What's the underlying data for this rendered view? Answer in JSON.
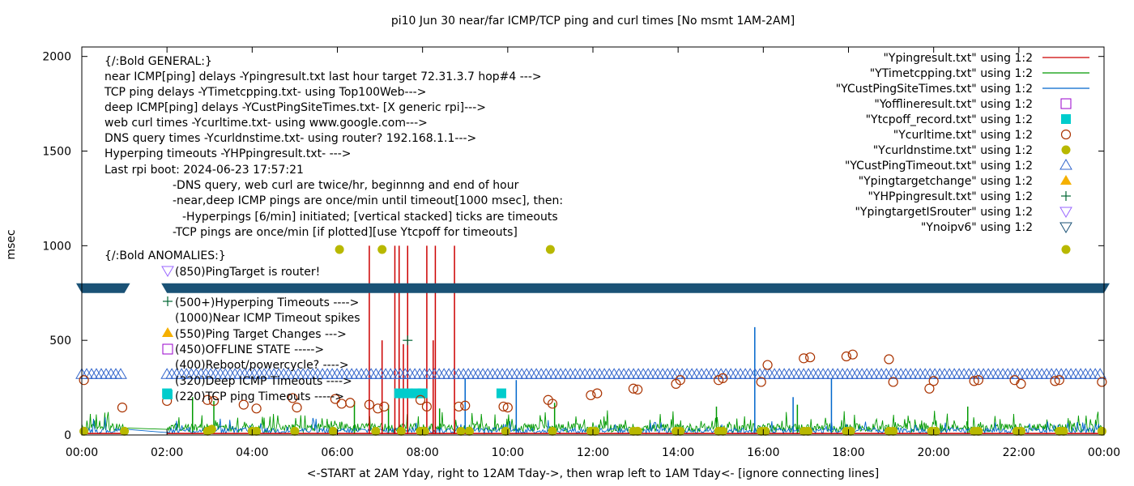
{
  "chart_data": {
    "type": "line",
    "title": "pi10 Jun 30  near/far ICMP/TCP ping and curl times [No msmt 1AM-2AM]",
    "xlabel": "<-START at 2AM Yday, right to 12AM Tday->, then wrap left to 1AM Tday<- [ignore connecting lines]",
    "ylabel": "msec",
    "xlim": [
      0,
      24
    ],
    "ylim": [
      0,
      2050
    ],
    "x_ticks": [
      "00:00",
      "02:00",
      "04:00",
      "06:00",
      "08:00",
      "10:00",
      "12:00",
      "14:00",
      "16:00",
      "18:00",
      "20:00",
      "22:00",
      "00:00"
    ],
    "y_ticks": [
      "0",
      "500",
      "1000",
      "1500",
      "2000"
    ],
    "grid": false,
    "legend_position": "top-right",
    "notes": [
      "{/:Bold GENERAL:}",
      "near ICMP[ping] delays -Ypingresult.txt last hour target 72.31.3.7 hop#4 --->",
      "TCP ping delays -YTimetcpping.txt- using Top100Web--->",
      "deep ICMP[ping] delays -YCustPingSiteTimes.txt- [X generic rpi]--->",
      "web curl times -Ycurltime.txt- using www.google.com--->",
      "DNS query times -Ycurldnstime.txt- using router? 192.168.1.1--->",
      "Hyperping timeouts -YHPpingresult.txt- --->",
      "Last rpi boot: 2024-06-23 17:57:21",
      "-DNS query, web curl are twice/hr, beginnng and end of hour",
      "-near,deep ICMP pings are once/min until timeout[1000 msec], then:",
      "-Hyperpings [6/min] initiated; [vertical stacked] ticks are timeouts",
      "-TCP pings are once/min [if plotted][use Ytcpoff for timeouts]",
      "{/:Bold ANOMALIES:}",
      "(850)PingTarget is router!",
      "(500+)Hyperping Timeouts ---->",
      "(1000)Near ICMP Timeout spikes",
      "(550)Ping Target Changes --->",
      "(450)OFFLINE STATE ----->",
      "(400)Reboot/powercycle? ---->",
      "(320)Deep ICMP Timeouts ---->",
      "(220)TCP ping Timeouts ----->"
    ],
    "series": [
      {
        "name": "\"Ypingresult.txt\" using 1:2",
        "color": "#cc0000",
        "marker": "line",
        "spikes": [
          [
            6.75,
            1000
          ],
          [
            7.35,
            1000
          ],
          [
            7.45,
            1000
          ],
          [
            7.65,
            1000
          ],
          [
            8.1,
            1000
          ],
          [
            8.3,
            1000
          ],
          [
            8.75,
            1000
          ],
          [
            7.05,
            500
          ],
          [
            7.55,
            480
          ],
          [
            8.25,
            500
          ]
        ]
      },
      {
        "name": "\"YTimetcpping.txt\" using 1:2",
        "color": "#009900",
        "marker": "line",
        "spikes": [
          [
            2.6,
            200
          ],
          [
            3.1,
            180
          ],
          [
            6.4,
            180
          ],
          [
            7.2,
            160
          ],
          [
            8.4,
            140
          ],
          [
            11.1,
            170
          ],
          [
            14.9,
            150
          ],
          [
            16.8,
            160
          ],
          [
            20.8,
            150
          ]
        ]
      },
      {
        "name": "\"YCustPingSiteTimes.txt\" using 1:2",
        "color": "#0066cc",
        "marker": "line",
        "spikes": [
          [
            15.8,
            570
          ],
          [
            9.0,
            300
          ],
          [
            10.2,
            290
          ],
          [
            17.6,
            300
          ],
          [
            16.7,
            200
          ]
        ]
      },
      {
        "name": "\"Yofflineresult.txt\" using 1:2",
        "color": "#9900cc",
        "marker": "open-square",
        "points": []
      },
      {
        "name": "\"Ytcpoff_record.txt\" using 1:2",
        "color": "#00cccc",
        "marker": "filled-square",
        "points": [
          [
            2.0,
            220
          ],
          [
            7.45,
            220
          ],
          [
            7.65,
            220
          ],
          [
            7.85,
            220
          ],
          [
            8.0,
            220
          ],
          [
            9.85,
            220
          ]
        ]
      },
      {
        "name": "\"Ycurltime.txt\" using 1:2",
        "color": "#aa3300",
        "marker": "open-circle",
        "points": [
          [
            0.05,
            290
          ],
          [
            0.95,
            145
          ],
          [
            2.0,
            180
          ],
          [
            2.95,
            185
          ],
          [
            3.1,
            180
          ],
          [
            3.8,
            160
          ],
          [
            4.1,
            140
          ],
          [
            4.95,
            195
          ],
          [
            5.05,
            145
          ],
          [
            5.95,
            190
          ],
          [
            6.1,
            165
          ],
          [
            6.3,
            170
          ],
          [
            6.75,
            160
          ],
          [
            6.95,
            140
          ],
          [
            7.1,
            150
          ],
          [
            7.95,
            185
          ],
          [
            8.1,
            150
          ],
          [
            8.85,
            150
          ],
          [
            9.0,
            155
          ],
          [
            9.9,
            150
          ],
          [
            10.0,
            145
          ],
          [
            10.95,
            185
          ],
          [
            11.05,
            165
          ],
          [
            11.95,
            210
          ],
          [
            12.1,
            220
          ],
          [
            12.95,
            245
          ],
          [
            13.05,
            240
          ],
          [
            13.95,
            270
          ],
          [
            14.05,
            290
          ],
          [
            14.95,
            290
          ],
          [
            15.05,
            300
          ],
          [
            15.95,
            280
          ],
          [
            16.1,
            370
          ],
          [
            16.95,
            405
          ],
          [
            17.1,
            410
          ],
          [
            17.95,
            415
          ],
          [
            18.1,
            425
          ],
          [
            18.95,
            400
          ],
          [
            19.05,
            280
          ],
          [
            19.9,
            245
          ],
          [
            20.0,
            285
          ],
          [
            20.95,
            285
          ],
          [
            21.05,
            290
          ],
          [
            21.9,
            290
          ],
          [
            22.05,
            270
          ],
          [
            22.85,
            285
          ],
          [
            22.95,
            290
          ],
          [
            23.95,
            280
          ]
        ]
      },
      {
        "name": "\"Ycurldnstime.txt\" using 1:2",
        "color": "#b8b800",
        "marker": "filled-circle",
        "points": [
          [
            0.05,
            20
          ],
          [
            1.0,
            20
          ],
          [
            2.95,
            20
          ],
          [
            3.05,
            30
          ],
          [
            4.0,
            20
          ],
          [
            4.1,
            20
          ],
          [
            5.0,
            20
          ],
          [
            5.9,
            20
          ],
          [
            6.05,
            980
          ],
          [
            6.9,
            20
          ],
          [
            7.05,
            980
          ],
          [
            7.5,
            20
          ],
          [
            7.95,
            20
          ],
          [
            8.05,
            20
          ],
          [
            8.9,
            20
          ],
          [
            9.1,
            20
          ],
          [
            9.95,
            20
          ],
          [
            11.0,
            980
          ],
          [
            11.05,
            20
          ],
          [
            11.95,
            20
          ],
          [
            12.05,
            20
          ],
          [
            12.95,
            20
          ],
          [
            13.05,
            20
          ],
          [
            13.95,
            20
          ],
          [
            14.05,
            20
          ],
          [
            14.95,
            20
          ],
          [
            15.05,
            20
          ],
          [
            15.95,
            20
          ],
          [
            16.05,
            20
          ],
          [
            16.95,
            20
          ],
          [
            17.05,
            20
          ],
          [
            17.95,
            20
          ],
          [
            18.05,
            20
          ],
          [
            18.95,
            20
          ],
          [
            19.05,
            20
          ],
          [
            19.95,
            20
          ],
          [
            20.05,
            20
          ],
          [
            20.95,
            20
          ],
          [
            21.05,
            20
          ],
          [
            21.95,
            20
          ],
          [
            22.05,
            20
          ],
          [
            22.95,
            20
          ],
          [
            23.05,
            20
          ],
          [
            23.95,
            20
          ]
        ]
      },
      {
        "name": "\"YCustPingTimeout.txt\" using 1:2",
        "color": "#3366cc",
        "marker": "open-triangle-up",
        "bands": [
          [
            0.0,
            1.0,
            320
          ],
          [
            2.0,
            23.95,
            320
          ]
        ]
      },
      {
        "name": "\"Ypingtargetchange\" using 1:2",
        "color": "#f5b000",
        "marker": "filled-triangle-up",
        "points": []
      },
      {
        "name": "\"YHPpingresult.txt\" using 1:2",
        "color": "#006633",
        "marker": "plus",
        "points": [
          [
            7.65,
            500
          ]
        ]
      },
      {
        "name": "\"YpingtargetISrouter\" using 1:2",
        "color": "#9966ff",
        "marker": "open-triangle-down",
        "points": []
      },
      {
        "name": "\"Ynoipv6\" using 1:2",
        "color": "#1a5276",
        "marker": "open-triangle-down",
        "bands": [
          [
            0.0,
            1.0,
            780
          ],
          [
            2.0,
            24.0,
            780
          ]
        ]
      }
    ]
  }
}
